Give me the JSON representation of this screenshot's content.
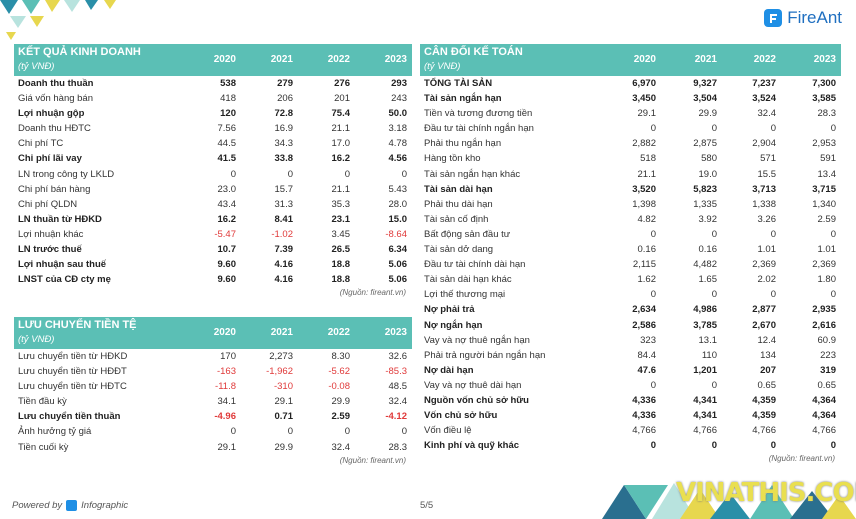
{
  "brand": {
    "name": "FireAnt",
    "powered_by": "Powered by",
    "powered_name": "Infographic",
    "page": "5/5",
    "watermark": "VINATHIS.COM"
  },
  "colors": {
    "header_bg": "#5bbfb5",
    "negative": "#e03a3a",
    "brand": "#1f8fe5"
  },
  "income": {
    "title": "KẾT QUẢ KINH DOANH",
    "unit": "(tỷ VNĐ)",
    "years": [
      "2020",
      "2021",
      "2022",
      "2023"
    ],
    "source": "(Nguồn: fireant.vn)",
    "rows": [
      {
        "label": "Doanh thu thuần",
        "bold": true,
        "values": [
          "538",
          "279",
          "276",
          "293"
        ]
      },
      {
        "label": "Giá vốn hàng bán",
        "bold": false,
        "values": [
          "418",
          "206",
          "201",
          "243"
        ]
      },
      {
        "label": "Lợi nhuận gộp",
        "bold": true,
        "values": [
          "120",
          "72.8",
          "75.4",
          "50.0"
        ]
      },
      {
        "label": "Doanh thu HĐTC",
        "bold": false,
        "values": [
          "7.56",
          "16.9",
          "21.1",
          "3.18"
        ]
      },
      {
        "label": "Chi phí TC",
        "bold": false,
        "values": [
          "44.5",
          "34.3",
          "17.0",
          "4.78"
        ]
      },
      {
        "label": "Chi phí lãi vay",
        "bold": true,
        "values": [
          "41.5",
          "33.8",
          "16.2",
          "4.56"
        ]
      },
      {
        "label": "LN trong công ty LKLD",
        "bold": false,
        "values": [
          "0",
          "0",
          "0",
          "0"
        ]
      },
      {
        "label": "Chi phí bán hàng",
        "bold": false,
        "values": [
          "23.0",
          "15.7",
          "21.1",
          "5.43"
        ]
      },
      {
        "label": "Chi phí QLDN",
        "bold": false,
        "values": [
          "43.4",
          "31.3",
          "35.3",
          "28.0"
        ]
      },
      {
        "label": "LN thuần từ HĐKD",
        "bold": true,
        "values": [
          "16.2",
          "8.41",
          "23.1",
          "15.0"
        ]
      },
      {
        "label": "Lợi nhuận khác",
        "bold": false,
        "values": [
          "-5.47",
          "-1.02",
          "3.45",
          "-8.64"
        ]
      },
      {
        "label": "LN trước thuế",
        "bold": true,
        "values": [
          "10.7",
          "7.39",
          "26.5",
          "6.34"
        ]
      },
      {
        "label": "Lợi nhuận sau thuế",
        "bold": true,
        "values": [
          "9.60",
          "4.16",
          "18.8",
          "5.06"
        ]
      },
      {
        "label": "LNST của CĐ cty mẹ",
        "bold": true,
        "values": [
          "9.60",
          "4.16",
          "18.8",
          "5.06"
        ]
      }
    ]
  },
  "cashflow": {
    "title": "LƯU CHUYỂN TIỀN TỆ",
    "unit": "(tỷ VNĐ)",
    "years": [
      "2020",
      "2021",
      "2022",
      "2023"
    ],
    "source": "(Nguồn: fireant.vn)",
    "rows": [
      {
        "label": "Lưu chuyển tiền từ HĐKD",
        "bold": false,
        "values": [
          "170",
          "2,273",
          "8.30",
          "32.6"
        ]
      },
      {
        "label": "Lưu chuyển tiền từ HĐĐT",
        "bold": false,
        "values": [
          "-163",
          "-1,962",
          "-5.62",
          "-85.3"
        ]
      },
      {
        "label": "Lưu chuyển tiền từ HĐTC",
        "bold": false,
        "values": [
          "-11.8",
          "-310",
          "-0.08",
          "48.5"
        ]
      },
      {
        "label": "Tiền đầu kỳ",
        "bold": false,
        "values": [
          "34.1",
          "29.1",
          "29.9",
          "32.4"
        ]
      },
      {
        "label": "Lưu chuyển tiền thuần",
        "bold": true,
        "values": [
          "-4.96",
          "0.71",
          "2.59",
          "-4.12"
        ]
      },
      {
        "label": "Ảnh hưởng tỷ giá",
        "bold": false,
        "values": [
          "0",
          "0",
          "0",
          "0"
        ]
      },
      {
        "label": "Tiền cuối kỳ",
        "bold": false,
        "values": [
          "29.1",
          "29.9",
          "32.4",
          "28.3"
        ]
      }
    ]
  },
  "balance": {
    "title": "CÂN ĐỐI KẾ TOÁN",
    "unit": "(tỷ VNĐ)",
    "years": [
      "2020",
      "2021",
      "2022",
      "2023"
    ],
    "source": "(Nguồn: fireant.vn)",
    "rows": [
      {
        "label": "TỔNG TÀI SẢN",
        "bold": true,
        "values": [
          "6,970",
          "9,327",
          "7,237",
          "7,300"
        ]
      },
      {
        "label": "Tài sản ngắn hạn",
        "bold": true,
        "values": [
          "3,450",
          "3,504",
          "3,524",
          "3,585"
        ]
      },
      {
        "label": "Tiền và tương đương tiền",
        "bold": false,
        "values": [
          "29.1",
          "29.9",
          "32.4",
          "28.3"
        ]
      },
      {
        "label": "Đầu tư tài chính ngắn hạn",
        "bold": false,
        "values": [
          "0",
          "0",
          "0",
          "0"
        ]
      },
      {
        "label": "Phải thu ngắn hạn",
        "bold": false,
        "values": [
          "2,882",
          "2,875",
          "2,904",
          "2,953"
        ]
      },
      {
        "label": "Hàng tồn kho",
        "bold": false,
        "values": [
          "518",
          "580",
          "571",
          "591"
        ]
      },
      {
        "label": "Tài sản ngắn hạn khác",
        "bold": false,
        "values": [
          "21.1",
          "19.0",
          "15.5",
          "13.4"
        ]
      },
      {
        "label": "Tài sản dài hạn",
        "bold": true,
        "values": [
          "3,520",
          "5,823",
          "3,713",
          "3,715"
        ]
      },
      {
        "label": "Phải thu dài hạn",
        "bold": false,
        "values": [
          "1,398",
          "1,335",
          "1,338",
          "1,340"
        ]
      },
      {
        "label": "Tài sản cố định",
        "bold": false,
        "values": [
          "4.82",
          "3.92",
          "3.26",
          "2.59"
        ]
      },
      {
        "label": "Bất động sản đầu tư",
        "bold": false,
        "values": [
          "0",
          "0",
          "0",
          "0"
        ]
      },
      {
        "label": "Tài sản dở dang",
        "bold": false,
        "values": [
          "0.16",
          "0.16",
          "1.01",
          "1.01"
        ]
      },
      {
        "label": "Đầu tư tài chính dài hạn",
        "bold": false,
        "values": [
          "2,115",
          "4,482",
          "2,369",
          "2,369"
        ]
      },
      {
        "label": "Tài sản dài hạn khác",
        "bold": false,
        "values": [
          "1.62",
          "1.65",
          "2.02",
          "1.80"
        ]
      },
      {
        "label": "Lợi thế thương mại",
        "bold": false,
        "values": [
          "0",
          "0",
          "0",
          "0"
        ]
      },
      {
        "label": "Nợ phải trả",
        "bold": true,
        "values": [
          "2,634",
          "4,986",
          "2,877",
          "2,935"
        ]
      },
      {
        "label": "Nợ ngắn hạn",
        "bold": true,
        "values": [
          "2,586",
          "3,785",
          "2,670",
          "2,616"
        ]
      },
      {
        "label": "Vay và nợ thuê ngắn hạn",
        "bold": false,
        "values": [
          "323",
          "13.1",
          "12.4",
          "60.9"
        ]
      },
      {
        "label": "Phải trả người bán ngắn hạn",
        "bold": false,
        "values": [
          "84.4",
          "110",
          "134",
          "223"
        ]
      },
      {
        "label": "Nợ dài hạn",
        "bold": true,
        "values": [
          "47.6",
          "1,201",
          "207",
          "319"
        ]
      },
      {
        "label": "Vay và nợ thuê dài hạn",
        "bold": false,
        "values": [
          "0",
          "0",
          "0.65",
          "0.65"
        ]
      },
      {
        "label": "Nguồn vốn chủ sở hữu",
        "bold": true,
        "values": [
          "4,336",
          "4,341",
          "4,359",
          "4,364"
        ]
      },
      {
        "label": "Vốn chủ sở hữu",
        "bold": true,
        "values": [
          "4,336",
          "4,341",
          "4,359",
          "4,364"
        ]
      },
      {
        "label": "Vốn điều lệ",
        "bold": false,
        "values": [
          "4,766",
          "4,766",
          "4,766",
          "4,766"
        ]
      },
      {
        "label": "Kinh phí và quỹ khác",
        "bold": true,
        "values": [
          "0",
          "0",
          "0",
          "0"
        ]
      }
    ]
  }
}
